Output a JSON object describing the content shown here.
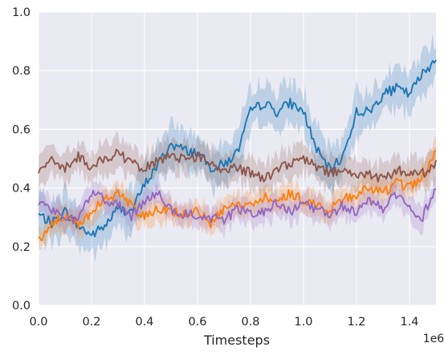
{
  "chart_data": {
    "type": "line",
    "xlabel": "Timesteps",
    "ylabel": "",
    "x_offset_text": "1e6",
    "xlim": [
      0,
      1.5
    ],
    "ylim": [
      0,
      1.0
    ],
    "x_ticks": [
      "0.0",
      "0.2",
      "0.4",
      "0.6",
      "0.8",
      "1.0",
      "1.2",
      "1.4"
    ],
    "x_tick_values": [
      0,
      0.2,
      0.4,
      0.6,
      0.8,
      1.0,
      1.2,
      1.4
    ],
    "y_ticks": [
      "0.0",
      "0.2",
      "0.4",
      "0.6",
      "0.8",
      "1.0"
    ],
    "y_tick_values": [
      0,
      0.2,
      0.4,
      0.6,
      0.8,
      1.0
    ],
    "grid": true,
    "legend": "none",
    "background": "#eaeaf2",
    "grid_color": "#ffffff",
    "x": [
      0,
      0.05,
      0.1,
      0.15,
      0.2,
      0.25,
      0.3,
      0.35,
      0.4,
      0.45,
      0.5,
      0.55,
      0.6,
      0.65,
      0.7,
      0.75,
      0.8,
      0.85,
      0.9,
      0.95,
      1.0,
      1.05,
      1.1,
      1.15,
      1.2,
      1.25,
      1.3,
      1.35,
      1.4,
      1.45,
      1.5
    ],
    "series": [
      {
        "color": "#1f77b4",
        "band_width": 0.07,
        "values": [
          0.31,
          0.28,
          0.32,
          0.27,
          0.24,
          0.27,
          0.33,
          0.32,
          0.41,
          0.48,
          0.55,
          0.53,
          0.52,
          0.47,
          0.48,
          0.52,
          0.66,
          0.69,
          0.66,
          0.69,
          0.66,
          0.53,
          0.46,
          0.51,
          0.66,
          0.66,
          0.72,
          0.74,
          0.72,
          0.79,
          0.84
        ]
      },
      {
        "color": "#ff7f0e",
        "band_width": 0.04,
        "values": [
          0.22,
          0.28,
          0.3,
          0.28,
          0.32,
          0.36,
          0.38,
          0.34,
          0.3,
          0.33,
          0.32,
          0.31,
          0.33,
          0.28,
          0.33,
          0.35,
          0.34,
          0.37,
          0.36,
          0.38,
          0.36,
          0.34,
          0.33,
          0.36,
          0.38,
          0.4,
          0.38,
          0.42,
          0.4,
          0.44,
          0.52
        ]
      },
      {
        "color": "#8c564b",
        "band_width": 0.05,
        "values": [
          0.46,
          0.49,
          0.47,
          0.51,
          0.47,
          0.5,
          0.52,
          0.48,
          0.47,
          0.49,
          0.51,
          0.5,
          0.51,
          0.49,
          0.46,
          0.47,
          0.45,
          0.43,
          0.46,
          0.48,
          0.5,
          0.47,
          0.45,
          0.46,
          0.44,
          0.45,
          0.43,
          0.46,
          0.45,
          0.45,
          0.48
        ]
      },
      {
        "color": "#9467bd",
        "band_width": 0.04,
        "values": [
          0.34,
          0.33,
          0.3,
          0.29,
          0.38,
          0.36,
          0.35,
          0.3,
          0.36,
          0.38,
          0.33,
          0.31,
          0.31,
          0.3,
          0.29,
          0.33,
          0.31,
          0.32,
          0.35,
          0.32,
          0.34,
          0.33,
          0.31,
          0.34,
          0.32,
          0.36,
          0.33,
          0.38,
          0.33,
          0.3,
          0.41
        ]
      }
    ]
  }
}
